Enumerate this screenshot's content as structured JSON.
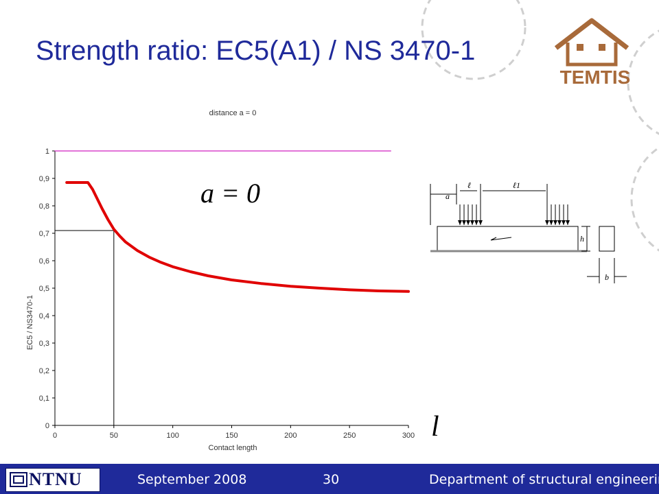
{
  "slide": {
    "title": "Strength ratio: EC5(A1) / NS 3470-1",
    "formula_a": "a = 0",
    "formula_l": "l"
  },
  "logo": {
    "text": "TEMTIS",
    "color": "#a86a3a"
  },
  "footer": {
    "date": "September 2008",
    "page": "30",
    "department": "Department of structural engineering",
    "logo_text": "NTNU",
    "bg_color": "#1f2a9a"
  },
  "beam_figure": {
    "labels": [
      "a",
      "ℓ",
      "ℓ1",
      "h",
      "b"
    ]
  },
  "chart_data": {
    "type": "line",
    "title": "distance a = 0",
    "xlabel": "Contact length",
    "ylabel": "EC5 / NS3470-1",
    "xlim": [
      0,
      300
    ],
    "ylim": [
      0,
      1
    ],
    "xticks": [
      "0",
      "50",
      "100",
      "150",
      "200",
      "250",
      "300"
    ],
    "yticks": [
      "0",
      "0,1",
      "0,2",
      "0,3",
      "0,4",
      "0,5",
      "0,6",
      "0,7",
      "0,8",
      "0,9",
      "1"
    ],
    "grid": false,
    "series": [
      {
        "color": "#e00000",
        "x": [
          10,
          20,
          28,
          32,
          36,
          40,
          45,
          50,
          55,
          60,
          70,
          80,
          90,
          100,
          115,
          130,
          150,
          175,
          200,
          225,
          250,
          275,
          300
        ],
        "y": [
          0.885,
          0.885,
          0.885,
          0.86,
          0.825,
          0.79,
          0.75,
          0.715,
          0.69,
          0.668,
          0.637,
          0.613,
          0.594,
          0.578,
          0.56,
          0.545,
          0.53,
          0.517,
          0.507,
          0.5,
          0.494,
          0.49,
          0.488
        ]
      },
      {
        "color": "#d020c0",
        "x": [
          0,
          285
        ],
        "y": [
          1,
          1
        ]
      }
    ],
    "annotations": [
      {
        "type": "vline",
        "x": 50,
        "y_to": 0.71
      },
      {
        "type": "hline",
        "y": 0.71,
        "x_to": 50
      }
    ]
  }
}
